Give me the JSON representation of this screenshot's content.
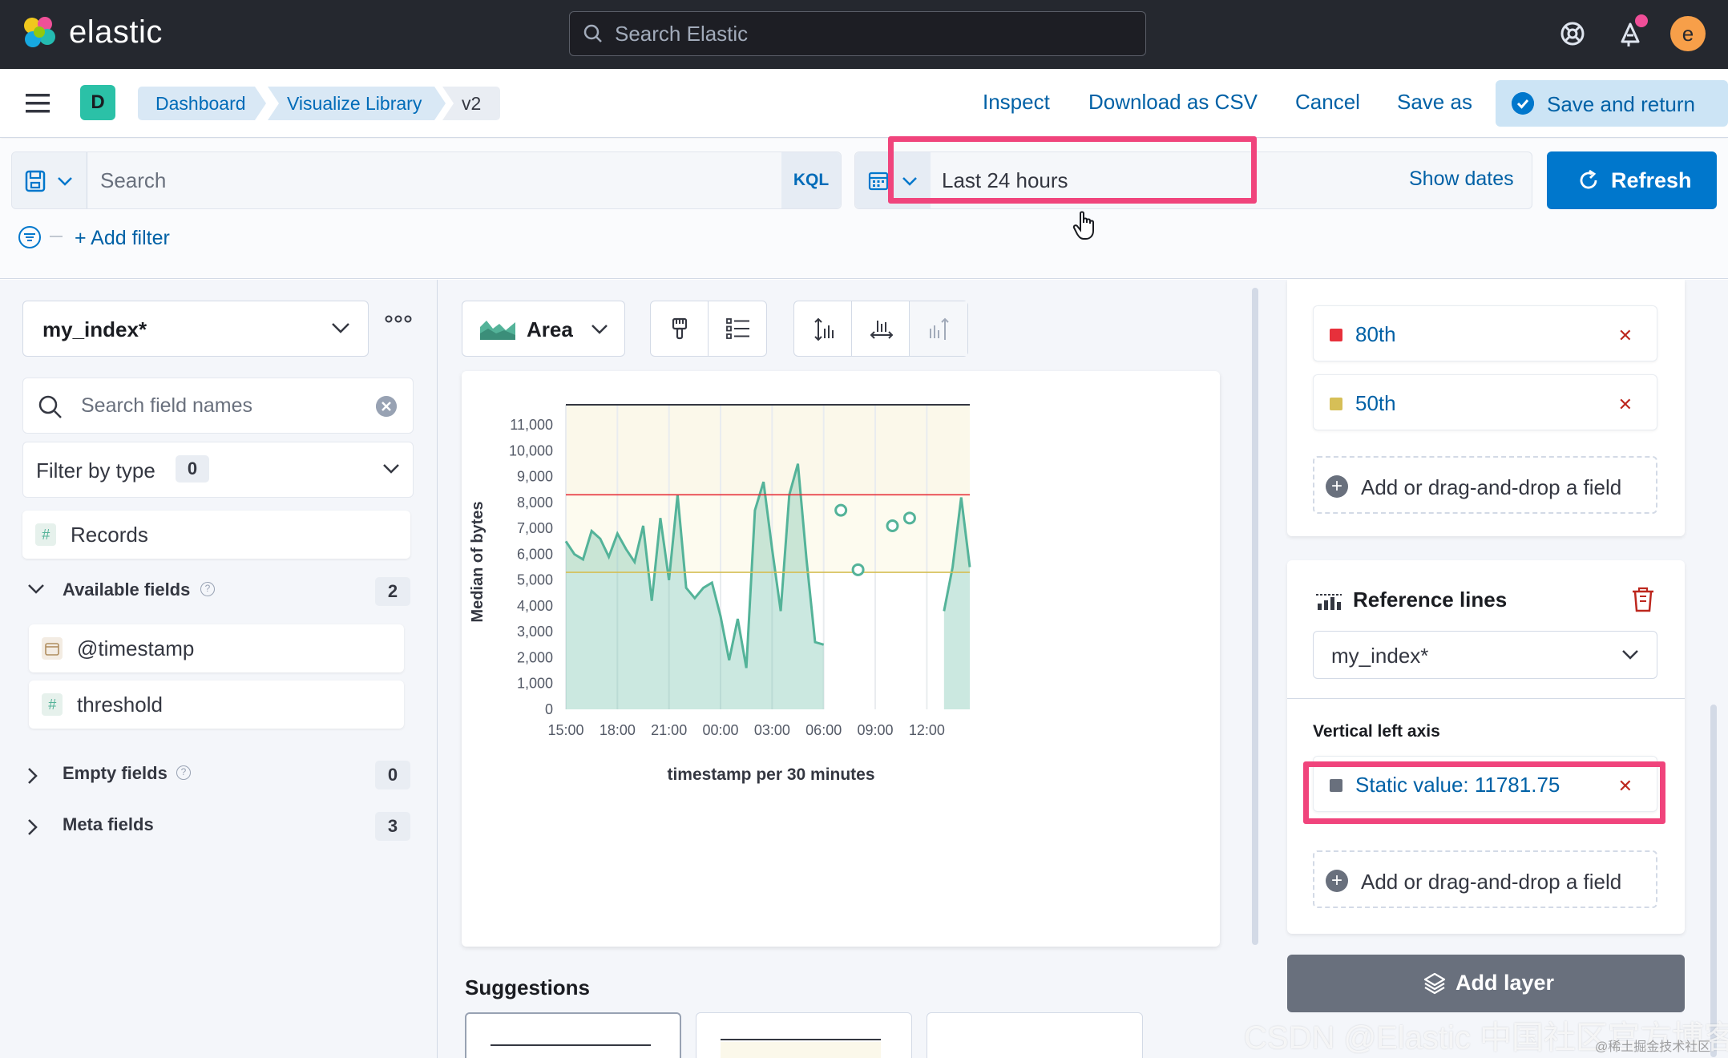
{
  "header": {
    "brand": "elastic",
    "search_placeholder": "Search Elastic",
    "avatar_initial": "e"
  },
  "appbar": {
    "space_initial": "D",
    "breadcrumbs": [
      "Dashboard",
      "Visualize Library",
      "v2"
    ],
    "links": [
      "Inspect",
      "Download as CSV",
      "Cancel",
      "Save as"
    ],
    "save_return_label": "Save and return"
  },
  "query": {
    "search_placeholder": "Search",
    "language": "KQL",
    "date_range": "Last 24 hours",
    "show_dates": "Show dates",
    "refresh_label": "Refresh",
    "add_filter": "+ Add filter"
  },
  "left": {
    "index_pattern": "my_index*",
    "field_search_placeholder": "Search field names",
    "filter_by_type": "Filter by type",
    "filter_count": "0",
    "records": "Records",
    "available_fields": {
      "label": "Available fields",
      "count": "2",
      "items": [
        "@timestamp",
        "threshold"
      ]
    },
    "empty_fields": {
      "label": "Empty fields",
      "count": "0"
    },
    "meta_fields": {
      "label": "Meta fields",
      "count": "3"
    }
  },
  "workspace": {
    "chart_type": "Area",
    "suggestions_title": "Suggestions"
  },
  "chart_data": {
    "type": "area",
    "xlabel": "timestamp per 30 minutes",
    "ylabel": "Median of bytes",
    "ylim": [
      0,
      11781.75
    ],
    "yticks": [
      0,
      1000,
      2000,
      3000,
      4000,
      5000,
      6000,
      7000,
      8000,
      9000,
      10000,
      11000
    ],
    "ytick_labels": [
      "0",
      "1,000",
      "2,000",
      "3,000",
      "4,000",
      "5,000",
      "6,000",
      "7,000",
      "8,000",
      "9,000",
      "10,000",
      "11,000"
    ],
    "xtick_labels": [
      "15:00",
      "18:00",
      "21:00",
      "00:00",
      "03:00",
      "06:00",
      "09:00",
      "12:00"
    ],
    "xlim_hours": [
      15,
      38.5
    ],
    "grid": true,
    "reference_lines": [
      {
        "name": "80th",
        "value": 8300,
        "color": "#e7303b"
      },
      {
        "name": "50th",
        "value": 5300,
        "color": "#d6bf57"
      },
      {
        "name": "Static value: 11781.75",
        "value": 11781.75,
        "color": "#343741"
      }
    ],
    "series": [
      {
        "name": "Median of bytes",
        "color": "#54b399",
        "segments": [
          [
            [
              15.0,
              6500
            ],
            [
              15.5,
              6000
            ],
            [
              16.0,
              5800
            ],
            [
              16.5,
              6900
            ],
            [
              17.0,
              6600
            ],
            [
              17.5,
              5900
            ],
            [
              18.0,
              6800
            ],
            [
              18.5,
              6200
            ],
            [
              19.0,
              5700
            ],
            [
              19.5,
              7100
            ],
            [
              20.0,
              4200
            ],
            [
              20.5,
              7400
            ],
            [
              21.0,
              5000
            ],
            [
              21.5,
              8300
            ],
            [
              22.0,
              4700
            ],
            [
              22.5,
              4300
            ],
            [
              23.0,
              4700
            ],
            [
              23.5,
              4900
            ],
            [
              24.0,
              3600
            ],
            [
              24.5,
              1900
            ],
            [
              25.0,
              3500
            ],
            [
              25.5,
              1600
            ],
            [
              26.0,
              7700
            ],
            [
              26.5,
              8800
            ],
            [
              27.0,
              6200
            ],
            [
              27.5,
              3800
            ],
            [
              28.0,
              8300
            ],
            [
              28.5,
              9500
            ],
            [
              29.0,
              5800
            ],
            [
              29.5,
              2600
            ],
            [
              30.0,
              2500
            ]
          ],
          [
            [
              37.0,
              3800
            ],
            [
              37.5,
              5500
            ],
            [
              38.0,
              8200
            ],
            [
              38.5,
              5500
            ]
          ]
        ],
        "points": [
          [
            31.0,
            7700
          ],
          [
            32.0,
            5400
          ],
          [
            34.0,
            7100
          ],
          [
            35.0,
            7400
          ]
        ]
      }
    ]
  },
  "right": {
    "dimensions": [
      {
        "label": "80th",
        "color": "#e7303b"
      },
      {
        "label": "50th",
        "color": "#d6bf57"
      }
    ],
    "add_field_label": "Add or drag-and-drop a field",
    "refline_title": "Reference lines",
    "refline_index": "my_index*",
    "axis_title": "Vertical left axis",
    "static_value": "Static value: 11781.75",
    "add_layer": "Add layer"
  },
  "watermark": "CSDN @Elastic 中国社区官方博客",
  "watermark_small": "@稀土掘金技术社区"
}
